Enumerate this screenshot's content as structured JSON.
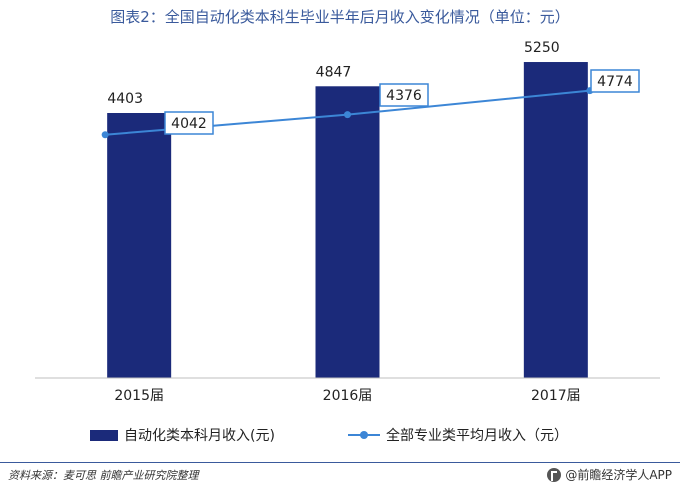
{
  "title": "图表2：全国自动化类本科生毕业半年后月收入变化情况（单位：元）",
  "colors": {
    "bar": "#1b2a7a",
    "line": "#3c86d6",
    "title": "#3a5a9c"
  },
  "chart_data": {
    "type": "bar",
    "categories": [
      "2015届",
      "2016届",
      "2017届"
    ],
    "series": [
      {
        "name": "自动化类本科月收入(元)",
        "type": "bar",
        "values": [
          4403,
          4847,
          5250
        ]
      },
      {
        "name": "全部专业类平均月收入（元）",
        "type": "line",
        "values": [
          4042,
          4376,
          4774
        ]
      }
    ],
    "ylim": [
      0,
      5400
    ],
    "grid": false,
    "legend": "bottom"
  },
  "footer": {
    "source": "资料来源：麦可思  前瞻产业研究院整理",
    "brand": "@前瞻经济学人APP",
    "brand_icon": "qianzhan-logo-icon"
  }
}
